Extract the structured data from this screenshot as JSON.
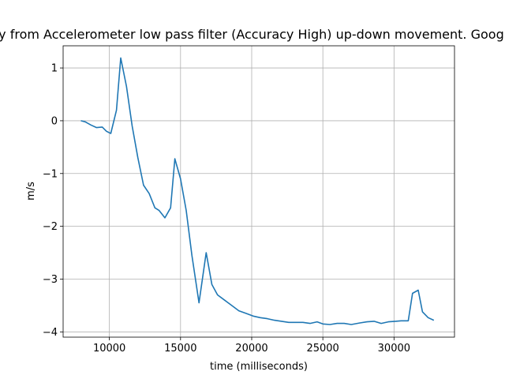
{
  "chart_data": {
    "type": "line",
    "title": "Velocity from Accelerometer low pass filter (Accuracy High) up-down movement. Google Pixel",
    "xlabel": "time (milliseconds)",
    "ylabel": "m/s",
    "xlim": [
      6750,
      34250
    ],
    "ylim": [
      -4.1,
      1.42
    ],
    "xticks": [
      10000,
      15000,
      20000,
      25000,
      30000
    ],
    "xtick_labels": [
      "10000",
      "15000",
      "20000",
      "25000",
      "30000"
    ],
    "yticks": [
      1,
      0,
      -1,
      -2,
      -3,
      -4
    ],
    "ytick_labels": [
      "1",
      "0",
      "−1",
      "−2",
      "−3",
      "−4"
    ],
    "grid": true,
    "line_color": "#1f77b4",
    "series": [
      {
        "name": "",
        "x": [
          8000,
          8300,
          8700,
          9100,
          9500,
          9800,
          10100,
          10500,
          10800,
          11200,
          11600,
          12000,
          12400,
          12800,
          13200,
          13500,
          13900,
          14300,
          14600,
          15000,
          15400,
          15800,
          16300,
          16800,
          17200,
          17600,
          18100,
          18600,
          19100,
          19600,
          20100,
          20600,
          21100,
          21600,
          22100,
          22600,
          23100,
          23600,
          24100,
          24600,
          25000,
          25500,
          26000,
          26500,
          27000,
          27600,
          28100,
          28600,
          29100,
          29600,
          30100,
          30500,
          31000,
          31300,
          31700,
          32000,
          32400,
          32800
        ],
        "y": [
          0.0,
          -0.02,
          -0.08,
          -0.13,
          -0.12,
          -0.2,
          -0.24,
          0.2,
          1.19,
          0.65,
          -0.1,
          -0.7,
          -1.22,
          -1.38,
          -1.65,
          -1.7,
          -1.84,
          -1.65,
          -0.72,
          -1.1,
          -1.7,
          -2.55,
          -3.45,
          -2.5,
          -3.1,
          -3.3,
          -3.4,
          -3.5,
          -3.6,
          -3.65,
          -3.7,
          -3.73,
          -3.75,
          -3.78,
          -3.8,
          -3.82,
          -3.82,
          -3.82,
          -3.84,
          -3.81,
          -3.85,
          -3.86,
          -3.84,
          -3.84,
          -3.86,
          -3.83,
          -3.81,
          -3.8,
          -3.84,
          -3.81,
          -3.8,
          -3.79,
          -3.79,
          -3.27,
          -3.21,
          -3.62,
          -3.73,
          -3.78
        ]
      }
    ]
  }
}
